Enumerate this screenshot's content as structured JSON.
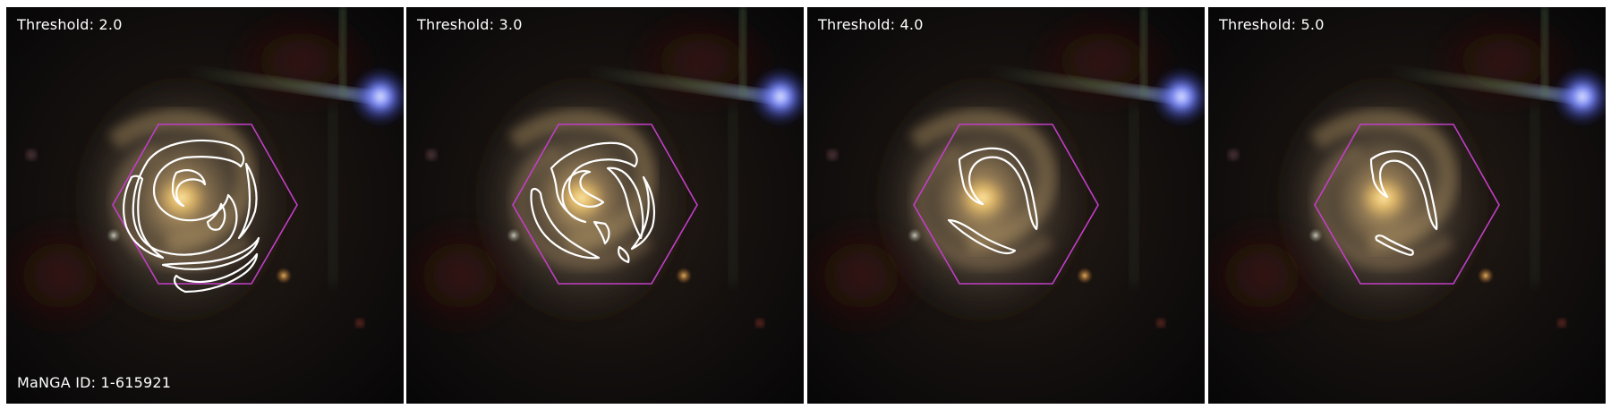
{
  "panels": [
    {
      "threshold_label": "Threshold: 2.0",
      "id_label": "MaNGA ID: 1-615921"
    },
    {
      "threshold_label": "Threshold: 3.0",
      "id_label": ""
    },
    {
      "threshold_label": "Threshold: 4.0",
      "id_label": ""
    },
    {
      "threshold_label": "Threshold: 5.0",
      "id_label": ""
    }
  ],
  "colors": {
    "hexagon": "#c23fc6",
    "contour": "#ffffff",
    "background": "#ffffff",
    "sky": "#07070a",
    "star": "#6d80ff"
  }
}
